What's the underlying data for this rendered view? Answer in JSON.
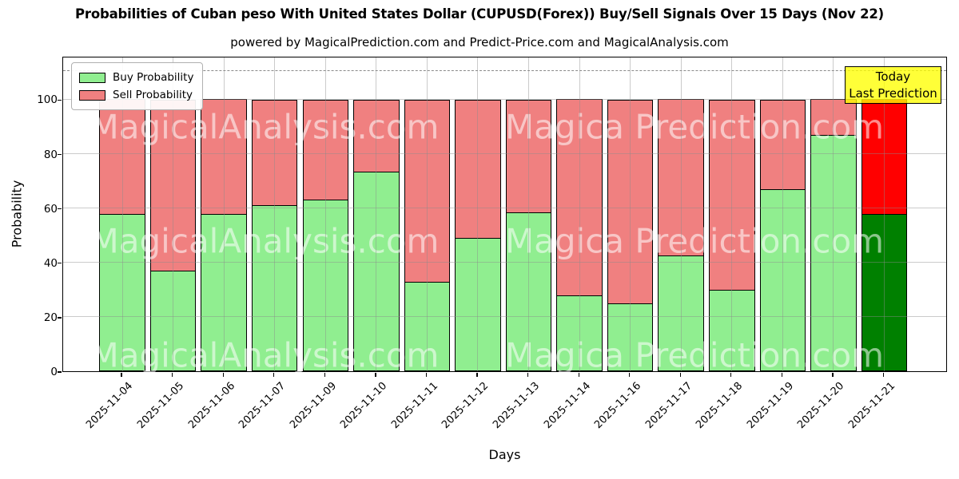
{
  "title": "Probabilities of Cuban peso With United States Dollar (CUPUSD(Forex)) Buy/Sell Signals Over 15 Days (Nov 22)",
  "subtitle": "powered by MagicalPrediction.com and Predict-Price.com and MagicalAnalysis.com",
  "legend": {
    "buy_label": "Buy Probability",
    "sell_label": "Sell Probability"
  },
  "today_annotation": {
    "line1": "Today",
    "line2": "Last Prediction",
    "background": "#FFFF00"
  },
  "watermarks": {
    "left_text": "MagicalAnalysis.com",
    "right_text": "Magica Prediction.com"
  },
  "colors": {
    "buy": "#90EE90",
    "sell": "#F08080",
    "today_buy": "#008000",
    "today_sell": "#FF0000",
    "bar_edge": "#000000",
    "grid": "#b0b0b0",
    "dashed_line": "#8a8a8a"
  },
  "chart_data": {
    "type": "bar",
    "stacked": true,
    "title": "Probabilities of Cuban peso With United States Dollar (CUPUSD(Forex)) Buy/Sell Signals Over 15 Days (Nov 22)",
    "xlabel": "Days",
    "ylabel": "Probability",
    "ylim": [
      0,
      116
    ],
    "yticks": [
      0,
      20,
      40,
      60,
      80,
      100
    ],
    "dashed_hline_y": 110.5,
    "grid": true,
    "legend_position": "upper left",
    "categories": [
      "2025-11-04",
      "2025-11-05",
      "2025-11-06",
      "2025-11-07",
      "2025-11-09",
      "2025-11-10",
      "2025-11-11",
      "2025-11-12",
      "2025-11-13",
      "2025-11-14",
      "2025-11-16",
      "2025-11-17",
      "2025-11-18",
      "2025-11-19",
      "2025-11-20",
      "2025-11-21"
    ],
    "series": [
      {
        "name": "Buy Probability",
        "color": "#90EE90",
        "values": [
          58,
          37,
          58,
          61,
          63,
          73.5,
          33,
          49,
          58.5,
          28,
          25,
          42.5,
          30,
          67,
          87,
          58
        ]
      },
      {
        "name": "Sell Probability",
        "color": "#F08080",
        "values": [
          42,
          63,
          42,
          39,
          37,
          26.5,
          67,
          51,
          41.5,
          72,
          75,
          57.5,
          70,
          33,
          13,
          42
        ]
      }
    ],
    "today_bar": {
      "category": "2025-11-21",
      "buy_color": "#008000",
      "sell_color": "#FF0000"
    }
  }
}
